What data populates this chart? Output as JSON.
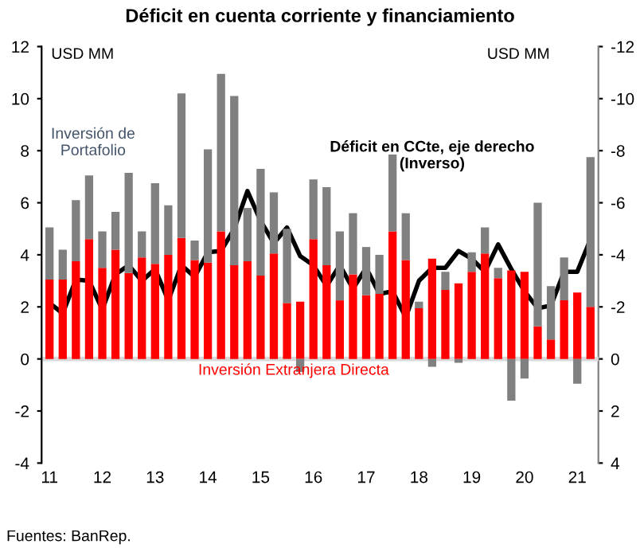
{
  "chart_data": {
    "type": "bar",
    "stacked": true,
    "title": "Déficit en cuenta corriente y financiamiento",
    "categories": [
      "11",
      null,
      null,
      null,
      "12",
      null,
      null,
      null,
      "13",
      null,
      null,
      null,
      "14",
      null,
      null,
      null,
      "15",
      null,
      null,
      null,
      "16",
      null,
      null,
      null,
      "17",
      null,
      null,
      null,
      "18",
      null,
      null,
      null,
      "19",
      null,
      null,
      null,
      "20",
      null,
      null,
      null,
      "21",
      null
    ],
    "series": [
      {
        "name": "Inversión Extranjera Directa",
        "color": "#ff0000",
        "values": [
          3.05,
          3.05,
          3.75,
          4.6,
          3.5,
          4.2,
          3.3,
          3.9,
          3.65,
          4.0,
          4.65,
          3.8,
          3.7,
          4.9,
          3.6,
          3.75,
          3.2,
          4.05,
          2.15,
          2.2,
          4.6,
          3.6,
          2.25,
          3.25,
          2.45,
          2.5,
          4.9,
          3.8,
          1.95,
          3.85,
          2.65,
          2.9,
          3.35,
          4.05,
          3.1,
          3.4,
          3.35,
          1.25,
          0.75,
          2.25,
          2.55,
          2.0
        ]
      },
      {
        "name": "Inversión de Portafolio",
        "color": "#808080",
        "values": [
          2.0,
          1.15,
          2.35,
          2.45,
          1.4,
          1.45,
          3.85,
          1.0,
          3.1,
          1.9,
          5.55,
          0.75,
          4.35,
          6.05,
          6.5,
          2.05,
          4.1,
          2.35,
          2.85,
          -0.5,
          2.3,
          3.0,
          2.65,
          2.35,
          1.85,
          1.5,
          2.95,
          1.8,
          0.25,
          -0.3,
          0.7,
          -0.15,
          0.75,
          1.0,
          0.4,
          -1.6,
          -0.75,
          4.75,
          2.05,
          1.65,
          -0.95,
          5.75
        ]
      },
      {
        "name": "Déficit en CCte, eje derecho (Inverso)",
        "type": "line",
        "axis": "y2",
        "color": "#000000",
        "values": [
          -2.15,
          -1.75,
          -3.05,
          -3.0,
          -1.9,
          -3.25,
          -3.6,
          -3.0,
          -3.45,
          -2.25,
          -3.6,
          -3.15,
          -4.1,
          -4.15,
          -5.0,
          -6.45,
          -5.3,
          -4.45,
          -5.05,
          -3.95,
          -3.6,
          -2.8,
          -3.6,
          -2.7,
          -3.5,
          -2.5,
          -2.6,
          -1.6,
          -3.0,
          -3.5,
          -3.5,
          -4.15,
          -3.85,
          -3.35,
          -4.4,
          -3.45,
          -2.6,
          -1.95,
          -2.05,
          -3.35,
          -3.35,
          -4.6
        ]
      }
    ],
    "ylim": [
      -4,
      12
    ],
    "yticks": [
      -4,
      -2,
      0,
      2,
      4,
      6,
      8,
      10,
      12
    ],
    "y2lim": [
      4,
      -12
    ],
    "y2ticks": [
      -12,
      -10,
      -8,
      -6,
      -4,
      -2,
      0,
      2,
      4
    ],
    "legend": false,
    "ref_lines": [
      {
        "axis": "y",
        "value": 0,
        "color": "#d9d9d9"
      }
    ],
    "annotations": [
      "USD MM",
      "USD MM",
      "Fuentes: BanRep."
    ]
  }
}
